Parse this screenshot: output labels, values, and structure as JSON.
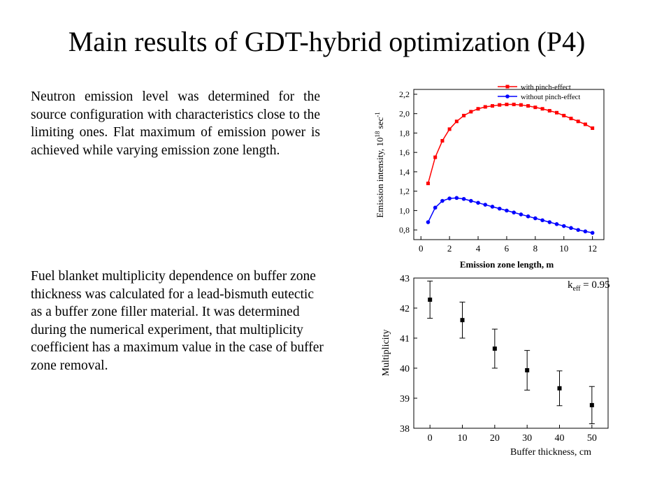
{
  "slide": {
    "title": "Main results of GDT-hybrid optimization (P4)",
    "paragraph_1": "Neutron emission level was determined for the source configuration with characteristics close to the limiting ones. Flat maximum of emission power is achieved while varying emission zone length.",
    "paragraph_2": "Fuel blanket multiplicity dependence on buffer zone thickness was calculated for a lead-bismuth eutectic as a buffer zone filler material. It was determined during the numerical experiment, that multiplicity coefficient has a maximum value in the case of buffer zone removal."
  },
  "chart_data": [
    {
      "type": "line",
      "xlabel": "Emission zone length, m",
      "ylabel_main": "Emission intensity, 10",
      "ylabel_sup1": "18",
      "ylabel_unit": "sec",
      "ylabel_sup2": "-1",
      "xlim": [
        -0.5,
        12.8
      ],
      "ylim": [
        0.7,
        2.25
      ],
      "xticks": [
        0,
        2,
        4,
        6,
        8,
        10,
        12
      ],
      "xtick_labels": [
        "0",
        "2",
        "4",
        "6",
        "8",
        "10",
        "12"
      ],
      "yticks": [
        0.8,
        1.0,
        1.2,
        1.4,
        1.6,
        1.8,
        2.0,
        2.2
      ],
      "ytick_labels": [
        "0,8",
        "1,0",
        "1,2",
        "1,4",
        "1,6",
        "1,8",
        "2,0",
        "2,2"
      ],
      "legend_position": "top-right",
      "x": [
        0.5,
        1.0,
        1.5,
        2.0,
        2.5,
        3.0,
        3.5,
        4.0,
        4.5,
        5.0,
        5.5,
        6.0,
        6.5,
        7.0,
        7.5,
        8.0,
        8.5,
        9.0,
        9.5,
        10.0,
        10.5,
        11.0,
        11.5,
        12.0
      ],
      "series": [
        {
          "name": "with pinch-effect",
          "color": "#ff0000",
          "marker": "square",
          "values": [
            1.28,
            1.55,
            1.72,
            1.84,
            1.92,
            1.98,
            2.02,
            2.05,
            2.07,
            2.08,
            2.09,
            2.095,
            2.095,
            2.09,
            2.08,
            2.065,
            2.05,
            2.03,
            2.01,
            1.98,
            1.95,
            1.92,
            1.89,
            1.85
          ]
        },
        {
          "name": "without pinch-effect",
          "color": "#0000ff",
          "marker": "circle",
          "values": [
            0.88,
            1.03,
            1.1,
            1.125,
            1.13,
            1.12,
            1.1,
            1.08,
            1.06,
            1.04,
            1.02,
            1.0,
            0.98,
            0.96,
            0.94,
            0.92,
            0.9,
            0.88,
            0.86,
            0.84,
            0.82,
            0.8,
            0.785,
            0.77
          ]
        }
      ]
    },
    {
      "type": "scatter",
      "xlabel": "Buffer thickness, cm",
      "ylabel": "Multiplicity",
      "annotation_main": "k",
      "annotation_sub": "eff",
      "annotation_rest": " = 0.95",
      "xlim": [
        -5,
        55
      ],
      "ylim": [
        38,
        43
      ],
      "xticks": [
        0,
        10,
        20,
        30,
        40,
        50
      ],
      "xtick_labels": [
        "0",
        "10",
        "20",
        "30",
        "40",
        "50"
      ],
      "yticks": [
        38,
        39,
        40,
        41,
        42,
        43
      ],
      "ytick_labels": [
        "38",
        "39",
        "40",
        "41",
        "42",
        "43"
      ],
      "x": [
        0,
        10,
        20,
        30,
        40,
        50
      ],
      "values": [
        42.28,
        41.6,
        40.65,
        39.93,
        39.33,
        38.77
      ],
      "errors": [
        0.62,
        0.6,
        0.65,
        0.66,
        0.58,
        0.62
      ],
      "color": "#000000",
      "marker": "square"
    }
  ]
}
